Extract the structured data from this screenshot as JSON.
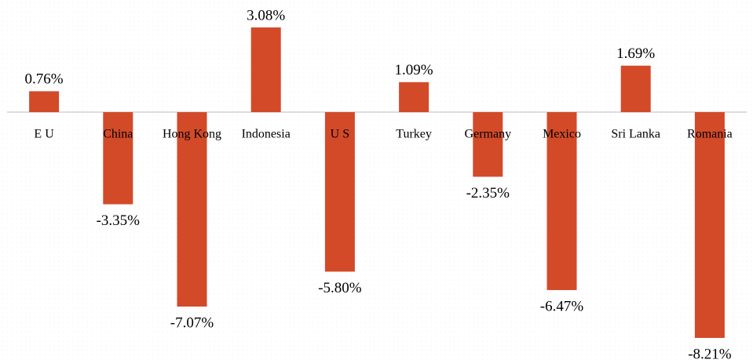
{
  "chart_data": {
    "type": "bar",
    "categories": [
      "E U",
      "China",
      "Hong Kong",
      "Indonesia",
      "U S",
      "Turkey",
      "Germany",
      "Mexico",
      "Sri Lanka",
      "Romania"
    ],
    "values": [
      0.76,
      -3.35,
      -7.07,
      3.08,
      -5.8,
      1.09,
      -2.35,
      -6.47,
      1.69,
      -8.21
    ],
    "value_labels": [
      "0.76%",
      "-3.35%",
      "-7.07%",
      "3.08%",
      "-5.80%",
      "1.09%",
      "-2.35%",
      "-6.47%",
      "1.69%",
      "-8.21%"
    ],
    "color": "#d34a29"
  }
}
